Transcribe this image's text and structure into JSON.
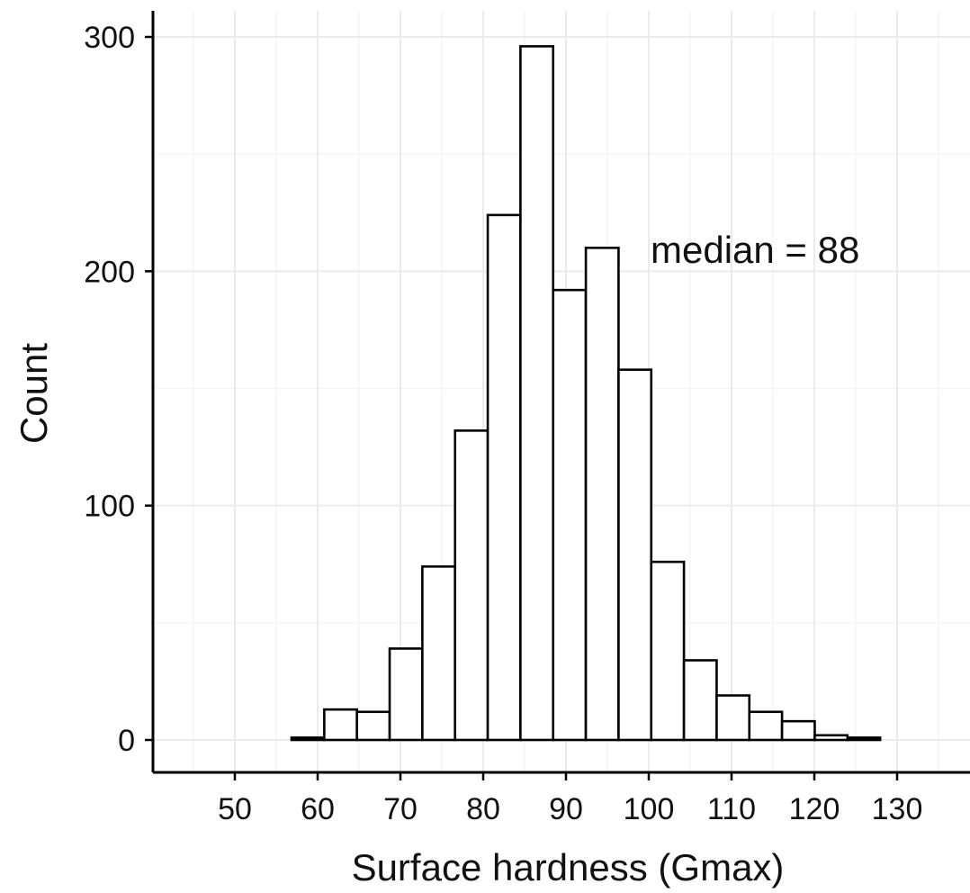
{
  "chart_data": {
    "type": "bar",
    "histogram": true,
    "xlabel": "Surface hardness (Gmax)",
    "ylabel": "Count",
    "annotation": "median = 88",
    "xlim": [
      45,
      135
    ],
    "ylim": [
      0,
      300
    ],
    "x_ticks": [
      50,
      60,
      70,
      80,
      90,
      100,
      110,
      120,
      130
    ],
    "x_tick_labels": [
      "50",
      "60",
      "70",
      "80",
      "90",
      "100",
      "110",
      "120",
      "130"
    ],
    "y_ticks": [
      0,
      100,
      200,
      300
    ],
    "y_tick_labels": [
      "0",
      "100",
      "200",
      "300"
    ],
    "bin_width": 3.95,
    "bins": [
      {
        "x0": 45.0,
        "x1": 48.95,
        "count": 0
      },
      {
        "x0": 48.95,
        "x1": 52.9,
        "count": 0
      },
      {
        "x0": 52.9,
        "x1": 56.85,
        "count": 0
      },
      {
        "x0": 56.85,
        "x1": 60.8,
        "count": 1
      },
      {
        "x0": 60.8,
        "x1": 64.75,
        "count": 13
      },
      {
        "x0": 64.75,
        "x1": 68.7,
        "count": 12
      },
      {
        "x0": 68.7,
        "x1": 72.65,
        "count": 39
      },
      {
        "x0": 72.65,
        "x1": 76.6,
        "count": 74
      },
      {
        "x0": 76.6,
        "x1": 80.55,
        "count": 132
      },
      {
        "x0": 80.55,
        "x1": 84.5,
        "count": 224
      },
      {
        "x0": 84.5,
        "x1": 88.45,
        "count": 296
      },
      {
        "x0": 88.45,
        "x1": 92.4,
        "count": 192
      },
      {
        "x0": 92.4,
        "x1": 96.35,
        "count": 210
      },
      {
        "x0": 96.35,
        "x1": 100.3,
        "count": 158
      },
      {
        "x0": 100.3,
        "x1": 104.25,
        "count": 76
      },
      {
        "x0": 104.25,
        "x1": 108.2,
        "count": 34
      },
      {
        "x0": 108.2,
        "x1": 112.15,
        "count": 19
      },
      {
        "x0": 112.15,
        "x1": 116.1,
        "count": 12
      },
      {
        "x0": 116.1,
        "x1": 120.05,
        "count": 8
      },
      {
        "x0": 120.05,
        "x1": 124.0,
        "count": 2
      },
      {
        "x0": 124.0,
        "x1": 127.95,
        "count": 1
      },
      {
        "x0": 127.95,
        "x1": 131.9,
        "count": 0
      },
      {
        "x0": 131.9,
        "x1": 135.0,
        "count": 0
      }
    ],
    "grid": true,
    "colors": {
      "bar_fill": "#ffffff",
      "bar_stroke": "#000000",
      "grid_major": "#ebebeb",
      "grid_minor": "#f4f4f4",
      "axis": "#000000"
    }
  }
}
